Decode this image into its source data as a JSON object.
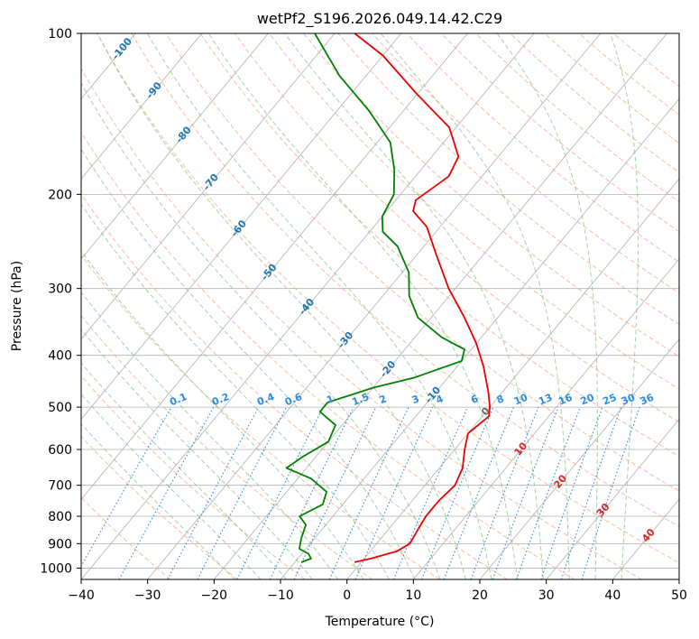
{
  "chart_data": {
    "type": "line",
    "title": "wetPf2_S196.2026.049.14.42.C29",
    "xlabel": "Temperature (°C)",
    "ylabel": "Pressure (hPa)",
    "xlim": [
      -40,
      50
    ],
    "ylim": [
      1050,
      100
    ],
    "yscale": "log",
    "grid": true,
    "x_ticks": [
      "−40",
      "−30",
      "−20",
      "−10",
      "0",
      "10",
      "20",
      "30",
      "40",
      "50"
    ],
    "y_ticks": [
      "100",
      "200",
      "300",
      "400",
      "500",
      "600",
      "700",
      "800",
      "900",
      "1000"
    ],
    "skew": true,
    "colors": {
      "temperature": "#ee0000",
      "dewpoint": "#008000",
      "dry_adiabats": "#f4a582",
      "moist_adiabats": "#7fbf7f",
      "mixing_ratio": "#2b8ce0",
      "isotherm_labels": "#1f77b4",
      "grid": "#b0b0b0"
    },
    "series": [
      {
        "name": "",
        "color": "#ee0000",
        "points": [
          {
            "p": 975,
            "t": -1
          },
          {
            "p": 960,
            "t": 1
          },
          {
            "p": 930,
            "t": 4
          },
          {
            "p": 900,
            "t": 5
          },
          {
            "p": 850,
            "t": 4.5
          },
          {
            "p": 800,
            "t": 4
          },
          {
            "p": 750,
            "t": 4
          },
          {
            "p": 700,
            "t": 4.5
          },
          {
            "p": 650,
            "t": 3.5
          },
          {
            "p": 600,
            "t": 1.5
          },
          {
            "p": 560,
            "t": 0
          },
          {
            "p": 520,
            "t": 1
          },
          {
            "p": 500,
            "t": 0
          },
          {
            "p": 470,
            "t": -2
          },
          {
            "p": 420,
            "t": -6
          },
          {
            "p": 380,
            "t": -10
          },
          {
            "p": 340,
            "t": -15
          },
          {
            "p": 300,
            "t": -21
          },
          {
            "p": 260,
            "t": -27
          },
          {
            "p": 230,
            "t": -32
          },
          {
            "p": 215,
            "t": -36
          },
          {
            "p": 205,
            "t": -37
          },
          {
            "p": 195,
            "t": -36
          },
          {
            "p": 185,
            "t": -35
          },
          {
            "p": 170,
            "t": -36
          },
          {
            "p": 150,
            "t": -41
          },
          {
            "p": 130,
            "t": -50
          },
          {
            "p": 110,
            "t": -60
          },
          {
            "p": 100,
            "t": -67
          }
        ]
      },
      {
        "name": "",
        "color": "#008000",
        "points": [
          {
            "p": 975,
            "t": -9
          },
          {
            "p": 960,
            "t": -8
          },
          {
            "p": 940,
            "t": -9
          },
          {
            "p": 920,
            "t": -11
          },
          {
            "p": 880,
            "t": -12
          },
          {
            "p": 830,
            "t": -13
          },
          {
            "p": 800,
            "t": -15
          },
          {
            "p": 760,
            "t": -13
          },
          {
            "p": 720,
            "t": -14
          },
          {
            "p": 680,
            "t": -18
          },
          {
            "p": 650,
            "t": -23
          },
          {
            "p": 620,
            "t": -22
          },
          {
            "p": 580,
            "t": -20
          },
          {
            "p": 540,
            "t": -21
          },
          {
            "p": 510,
            "t": -25
          },
          {
            "p": 490,
            "t": -25
          },
          {
            "p": 460,
            "t": -20
          },
          {
            "p": 440,
            "t": -15
          },
          {
            "p": 410,
            "t": -10
          },
          {
            "p": 390,
            "t": -11
          },
          {
            "p": 370,
            "t": -16
          },
          {
            "p": 340,
            "t": -22
          },
          {
            "p": 310,
            "t": -26
          },
          {
            "p": 280,
            "t": -29
          },
          {
            "p": 250,
            "t": -34
          },
          {
            "p": 235,
            "t": -38
          },
          {
            "p": 220,
            "t": -40
          },
          {
            "p": 200,
            "t": -41
          },
          {
            "p": 180,
            "t": -44
          },
          {
            "p": 160,
            "t": -48
          },
          {
            "p": 140,
            "t": -55
          },
          {
            "p": 120,
            "t": -64
          },
          {
            "p": 100,
            "t": -73
          }
        ]
      }
    ],
    "isotherm_labels": [
      {
        "label": "-100",
        "t": -100,
        "p": 107
      },
      {
        "label": "-90",
        "t": -90,
        "p": 128
      },
      {
        "label": "-80",
        "t": -80,
        "p": 155
      },
      {
        "label": "-70",
        "t": -70,
        "p": 190
      },
      {
        "label": "-60",
        "t": -60,
        "p": 232
      },
      {
        "label": "-50",
        "t": -50,
        "p": 280
      },
      {
        "label": "-40",
        "t": -40,
        "p": 325
      },
      {
        "label": "-30",
        "t": -30,
        "p": 375
      },
      {
        "label": "-20",
        "t": -20,
        "p": 425
      },
      {
        "label": "-10",
        "t": -10,
        "p": 475
      }
    ],
    "mixing_ratio_labels": [
      "0.1",
      "0.2",
      "0.4",
      "0.6",
      "1",
      "1.5",
      "2",
      "3",
      "4",
      "6",
      "8",
      "10",
      "13",
      "16",
      "20",
      "25",
      "30",
      "36"
    ],
    "mixing_ratio_values": [
      0.1,
      0.2,
      0.4,
      0.6,
      1,
      1.5,
      2,
      3,
      4,
      6,
      8,
      10,
      13,
      16,
      20,
      25,
      30,
      36
    ],
    "mixing_ratio_label_pressure": 500,
    "low_isotherm_labels": [
      {
        "label": "0",
        "t": 0,
        "p": 510,
        "color": "#666666"
      },
      {
        "label": "10",
        "t": 10,
        "p": 600,
        "color": "#d62728"
      },
      {
        "label": "20",
        "t": 20,
        "p": 690,
        "color": "#d62728"
      },
      {
        "label": "30",
        "t": 30,
        "p": 780,
        "color": "#d62728"
      },
      {
        "label": "40",
        "t": 40,
        "p": 870,
        "color": "#d62728"
      }
    ]
  }
}
